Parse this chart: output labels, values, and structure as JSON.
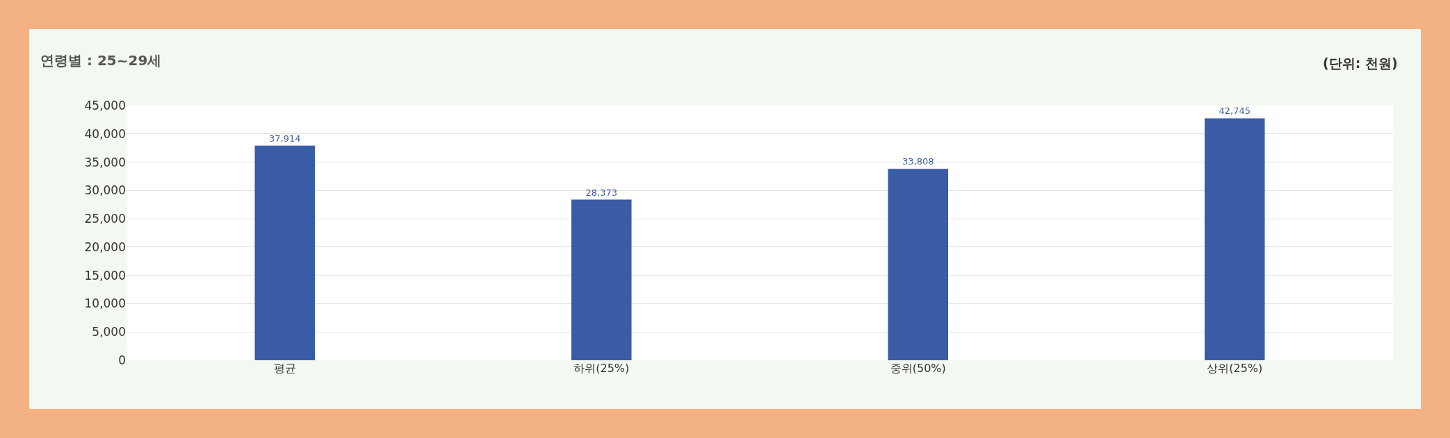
{
  "chart_data": {
    "type": "bar",
    "title": "연령별 : 25~29세",
    "annotations": [
      "(단위: 천원)"
    ],
    "categories": [
      "평균",
      "하위(25%)",
      "중위(50%)",
      "상위(25%)"
    ],
    "values": [
      37914,
      28373,
      33808,
      42745
    ],
    "value_labels": [
      "37,914",
      "28,373",
      "33,808",
      "42,745"
    ],
    "color": "#3a5ba5",
    "ylim": [
      0,
      45000
    ],
    "yticks": [
      {
        "value": 0,
        "label": "0"
      },
      {
        "value": 5000,
        "label": "5,000"
      },
      {
        "value": 10000,
        "label": "10,000"
      },
      {
        "value": 15000,
        "label": "15,000"
      },
      {
        "value": 20000,
        "label": "20,000"
      },
      {
        "value": 25000,
        "label": "25,000"
      },
      {
        "value": 30000,
        "label": "30,000"
      },
      {
        "value": 35000,
        "label": "35,000"
      },
      {
        "value": 40000,
        "label": "40,000"
      },
      {
        "value": 45000,
        "label": "45,000"
      }
    ],
    "grid": "y"
  }
}
